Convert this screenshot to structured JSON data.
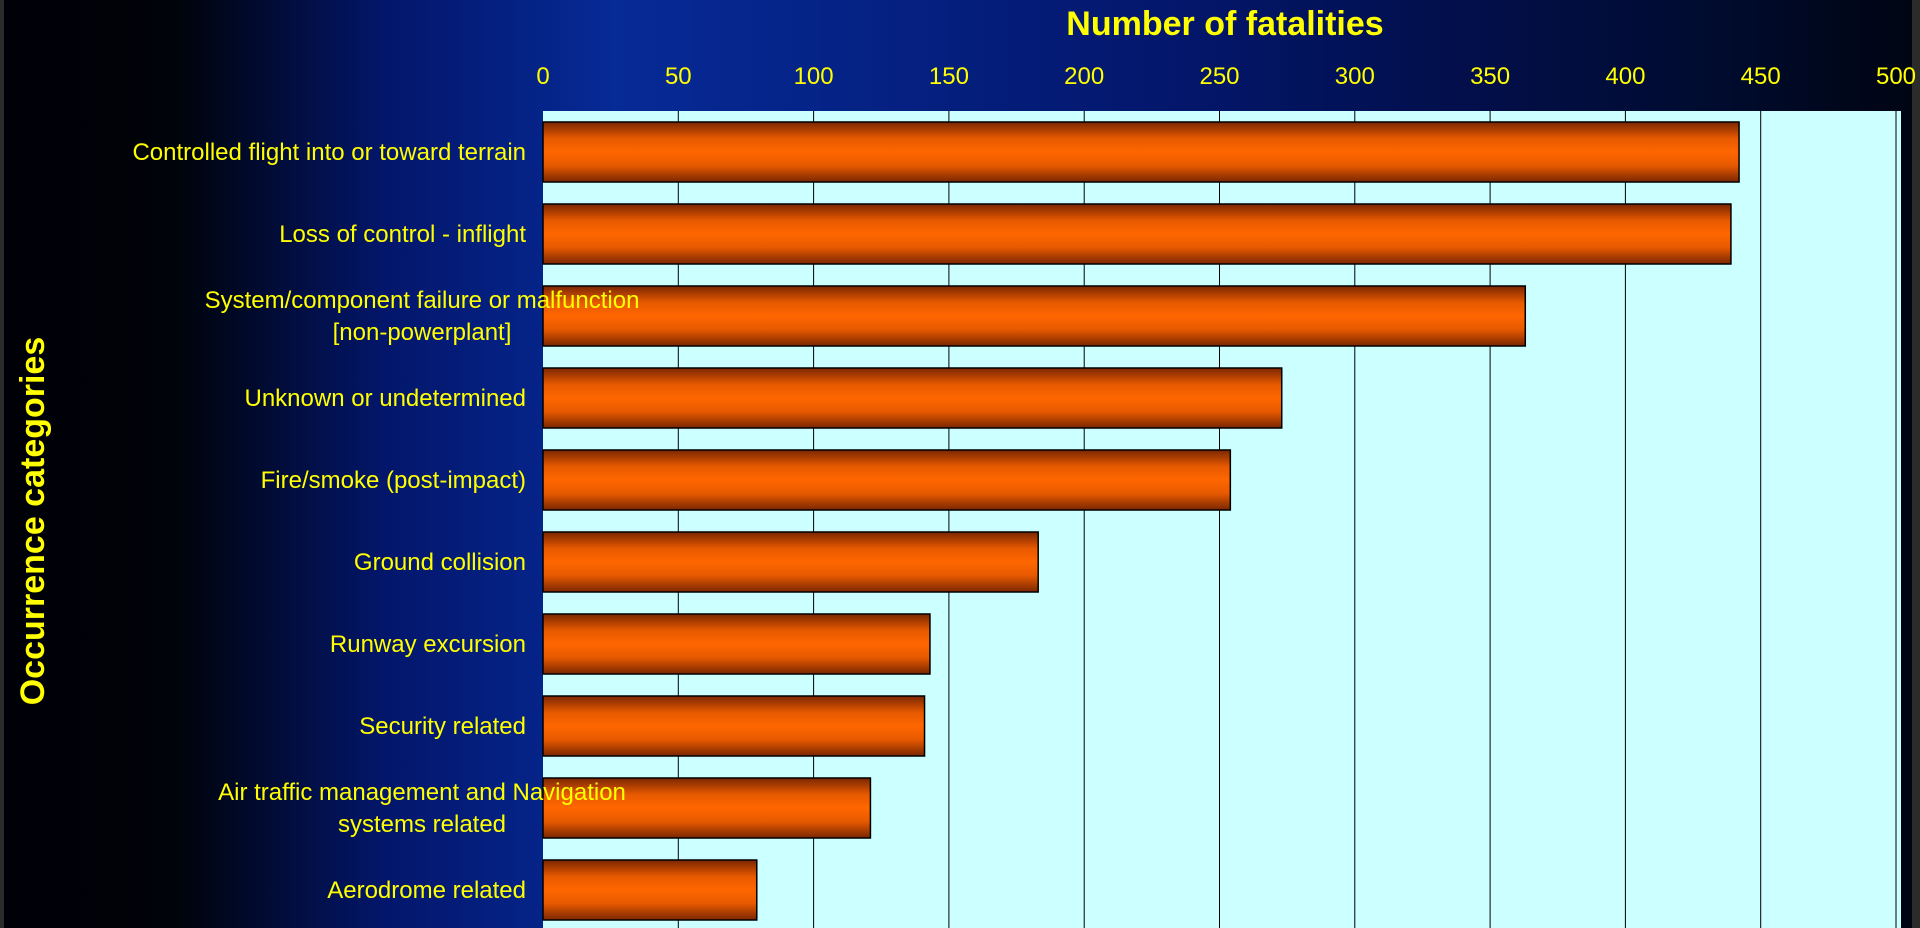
{
  "chart_data": {
    "type": "bar",
    "orientation": "horizontal",
    "title": "",
    "xlabel": "Number of fatalities",
    "ylabel": "Occurrence categories",
    "xlim": [
      0,
      500
    ],
    "x_ticks": [
      "0",
      "50",
      "100",
      "150",
      "200",
      "250",
      "300",
      "350",
      "400",
      "450",
      "500"
    ],
    "categories": [
      [
        "Controlled flight into or toward terrain"
      ],
      [
        "Loss of control - inflight"
      ],
      [
        "System/component failure or malfunction",
        "[non-powerplant]"
      ],
      [
        "Unknown or undetermined"
      ],
      [
        "Fire/smoke (post-impact)"
      ],
      [
        "Ground collision"
      ],
      [
        "Runway excursion"
      ],
      [
        "Security related"
      ],
      [
        "Air traffic management and Navigation",
        "systems related"
      ],
      [
        "Aerodrome related"
      ]
    ],
    "values": [
      442,
      439,
      363,
      273,
      254,
      183,
      143,
      141,
      121,
      79
    ],
    "grid": true,
    "legend": "none",
    "colors": {
      "bar_mid": "#ff6600",
      "bar_dark": "#7a2600",
      "plot_background": "#ccffff",
      "text": "#ffff00",
      "slide_background": "#062a96"
    }
  }
}
